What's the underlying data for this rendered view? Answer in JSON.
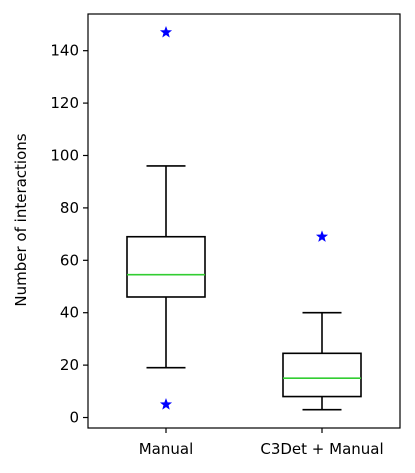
{
  "chart_data": {
    "type": "box",
    "title": "",
    "xlabel": "",
    "ylabel": "Number of interactions",
    "ylim": [
      -4,
      154
    ],
    "yticks": [
      0,
      20,
      40,
      60,
      80,
      100,
      120,
      140
    ],
    "ytick_labels": [
      "0",
      "20",
      "40",
      "60",
      "80",
      "100",
      "120",
      "140"
    ],
    "grid": false,
    "legend": "none",
    "categories": [
      "Manual",
      "C3Det + Manual"
    ],
    "boxes": [
      {
        "category": "Manual",
        "whisker_low": 19,
        "q1": 46,
        "median": 54.5,
        "q3": 69,
        "whisker_high": 96,
        "outliers": [
          5,
          147
        ]
      },
      {
        "category": "C3Det + Manual",
        "whisker_low": 3,
        "q1": 8,
        "median": 15,
        "q3": 24.5,
        "whisker_high": 40,
        "outliers": [
          69
        ]
      }
    ],
    "colors": {
      "box": "#000000",
      "median": "#32cd32",
      "outlier": "#0000ff"
    }
  }
}
